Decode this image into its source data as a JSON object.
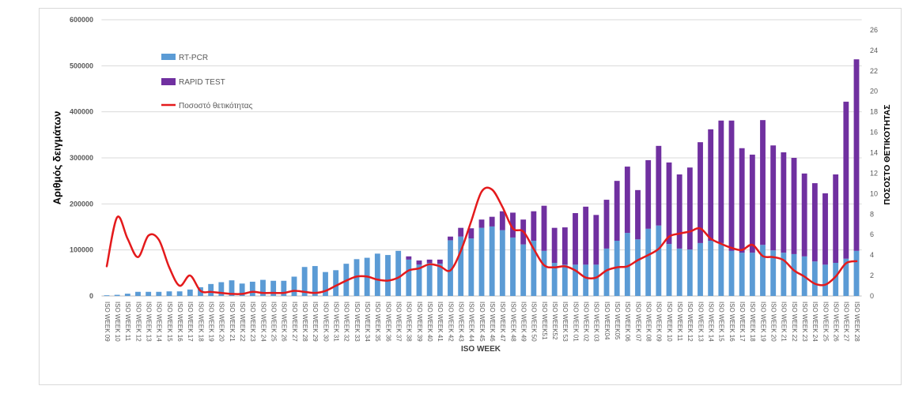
{
  "chart_data": {
    "type": "bar",
    "stacked": true,
    "xlabel": "ISO WEEK",
    "ylabel": "Αριθμός δειγμάτων",
    "y2label": "ΠΟΣΟΣΤΟ ΘΕΤΙΚΟΤΗΤΑΣ",
    "ylim": [
      0,
      600000
    ],
    "y2lim": [
      0,
      27
    ],
    "yticks": [
      0,
      100000,
      200000,
      300000,
      400000,
      500000,
      600000
    ],
    "y2ticks": [
      0,
      2,
      4,
      6,
      8,
      10,
      12,
      14,
      16,
      18,
      20,
      22,
      24,
      26
    ],
    "grid": true,
    "legend": "top-left",
    "x": [
      "ISO WEEK 09",
      "ISO WEEK 10",
      "ISO WEEK 11",
      "ISO WEEK 12",
      "ISO WEEK 13",
      "ISO WEEK 14",
      "ISO WEEK 15",
      "ISO WEEK 16",
      "ISO WEEK 17",
      "ISO WEEK 18",
      "ISO WEEK 19",
      "ISO WEEK 20",
      "ISO WEEK 21",
      "ISO WEEK 22",
      "ISO WEEK 23",
      "ISO WEEK 24",
      "ISO WEEK 25",
      "ISO WEEK 26",
      "ISO WEEK 27",
      "ISO WEEK 28",
      "ISO WEEK 29",
      "ISO WEEK 30",
      "ISO WEEK 31",
      "ISO WEEK 32",
      "ISO WEEK 33",
      "ISO WEEK 34",
      "ISO WEEK 35",
      "ISO WEEK 36",
      "ISO WEEK 37",
      "ISO WEEK 38",
      "ISO WEEK 39",
      "ISO WEEK 40",
      "ISO WEEK 41",
      "ISO WEEK 42",
      "ISO WEEK 43",
      "ISO WEEK 44",
      "ISO WEEK 45",
      "ISO WEEK 46",
      "ISO WEEK 47",
      "ISO WEEK 48",
      "ISO WEEK 49",
      "ISO WEEK 50",
      "ISO WEEK51",
      "ISO WEEK52",
      "ISO WEEK 53",
      "ISO WEEK 01",
      "ISO WEEK 02",
      "ISO WEEK 03",
      "ISO WEEK04",
      "ISO WEEK05",
      "ISO WEEK 06",
      "ISO WEEK 07",
      "ISO WEEK 08",
      "ISO WEEK 09",
      "ISO WEEK 10",
      "ISO WEEK 11",
      "ISO WEEK 12",
      "ISO WEEK 13",
      "ISO WEEK 14",
      "ISO WEEK 15",
      "ISO WEEK 16",
      "ISO WEEK 17",
      "ISO WEEK 18",
      "ISO WEEK 19",
      "ISO WEEK 20",
      "ISO WEEK 21",
      "ISO WEEK 22",
      "ISO WEEK 23",
      "ISO WEEK 24",
      "ISO WEEK 25",
      "ISO WEEK 26",
      "ISO WEEK 27",
      "ISO WEEK 28"
    ],
    "series": [
      {
        "name": "RT-PCR",
        "type": "bar",
        "axis": "left",
        "color": "#5b9bd5",
        "values": [
          1500,
          2500,
          5000,
          9000,
          9000,
          9000,
          10000,
          10000,
          14000,
          19000,
          26000,
          30000,
          34000,
          27000,
          31000,
          35000,
          33000,
          33000,
          42000,
          63000,
          65000,
          52000,
          56000,
          70000,
          80000,
          83000,
          92000,
          89000,
          98000,
          79000,
          68000,
          72000,
          70000,
          121000,
          129000,
          125000,
          148000,
          151000,
          143000,
          127000,
          112000,
          120000,
          98000,
          72000,
          68000,
          68000,
          68000,
          68000,
          103000,
          120000,
          137000,
          123000,
          146000,
          153000,
          113000,
          103000,
          101000,
          115000,
          120000,
          115000,
          98000,
          94000,
          94000,
          111000,
          99000,
          94000,
          91000,
          86000,
          75000,
          68000,
          72000,
          81000,
          98000
        ]
      },
      {
        "name": "RAPID TEST",
        "type": "bar",
        "axis": "left",
        "color": "#7030a0",
        "values": [
          0,
          0,
          0,
          0,
          0,
          0,
          0,
          0,
          0,
          0,
          0,
          0,
          0,
          0,
          0,
          0,
          0,
          0,
          0,
          0,
          0,
          0,
          0,
          0,
          0,
          0,
          0,
          0,
          0,
          7000,
          9000,
          7000,
          9000,
          8000,
          19000,
          22000,
          18000,
          21000,
          41000,
          54000,
          54000,
          64000,
          98000,
          76000,
          81000,
          112000,
          126000,
          108000,
          106000,
          130000,
          144000,
          107000,
          149000,
          173000,
          177000,
          161000,
          178000,
          219000,
          242000,
          266000,
          283000,
          227000,
          213000,
          271000,
          228000,
          218000,
          209000,
          180000,
          170000,
          155000,
          192000,
          341000,
          416000
        ]
      },
      {
        "name": "Ποσοστό θετικότητας",
        "type": "line",
        "axis": "right",
        "color": "#e41a1c",
        "values": [
          2.9,
          7.7,
          5.6,
          3.8,
          5.9,
          5.5,
          2.8,
          1.0,
          2.0,
          0.5,
          0.4,
          0.3,
          0.2,
          0.2,
          0.4,
          0.3,
          0.3,
          0.3,
          0.5,
          0.4,
          0.3,
          0.5,
          1.0,
          1.5,
          1.9,
          1.9,
          1.6,
          1.5,
          1.8,
          2.5,
          2.7,
          3.1,
          2.9,
          2.5,
          4.4,
          7.3,
          10.2,
          10.4,
          8.7,
          6.6,
          6.3,
          4.6,
          3.0,
          2.8,
          2.9,
          2.5,
          1.8,
          1.8,
          2.5,
          2.8,
          2.9,
          3.5,
          4.0,
          4.6,
          5.8,
          6.1,
          6.3,
          6.6,
          5.6,
          5.1,
          4.7,
          4.5,
          5.0,
          3.9,
          3.8,
          3.5,
          2.5,
          1.9,
          1.2,
          1.1,
          1.9,
          3.2,
          3.4
        ]
      }
    ]
  }
}
